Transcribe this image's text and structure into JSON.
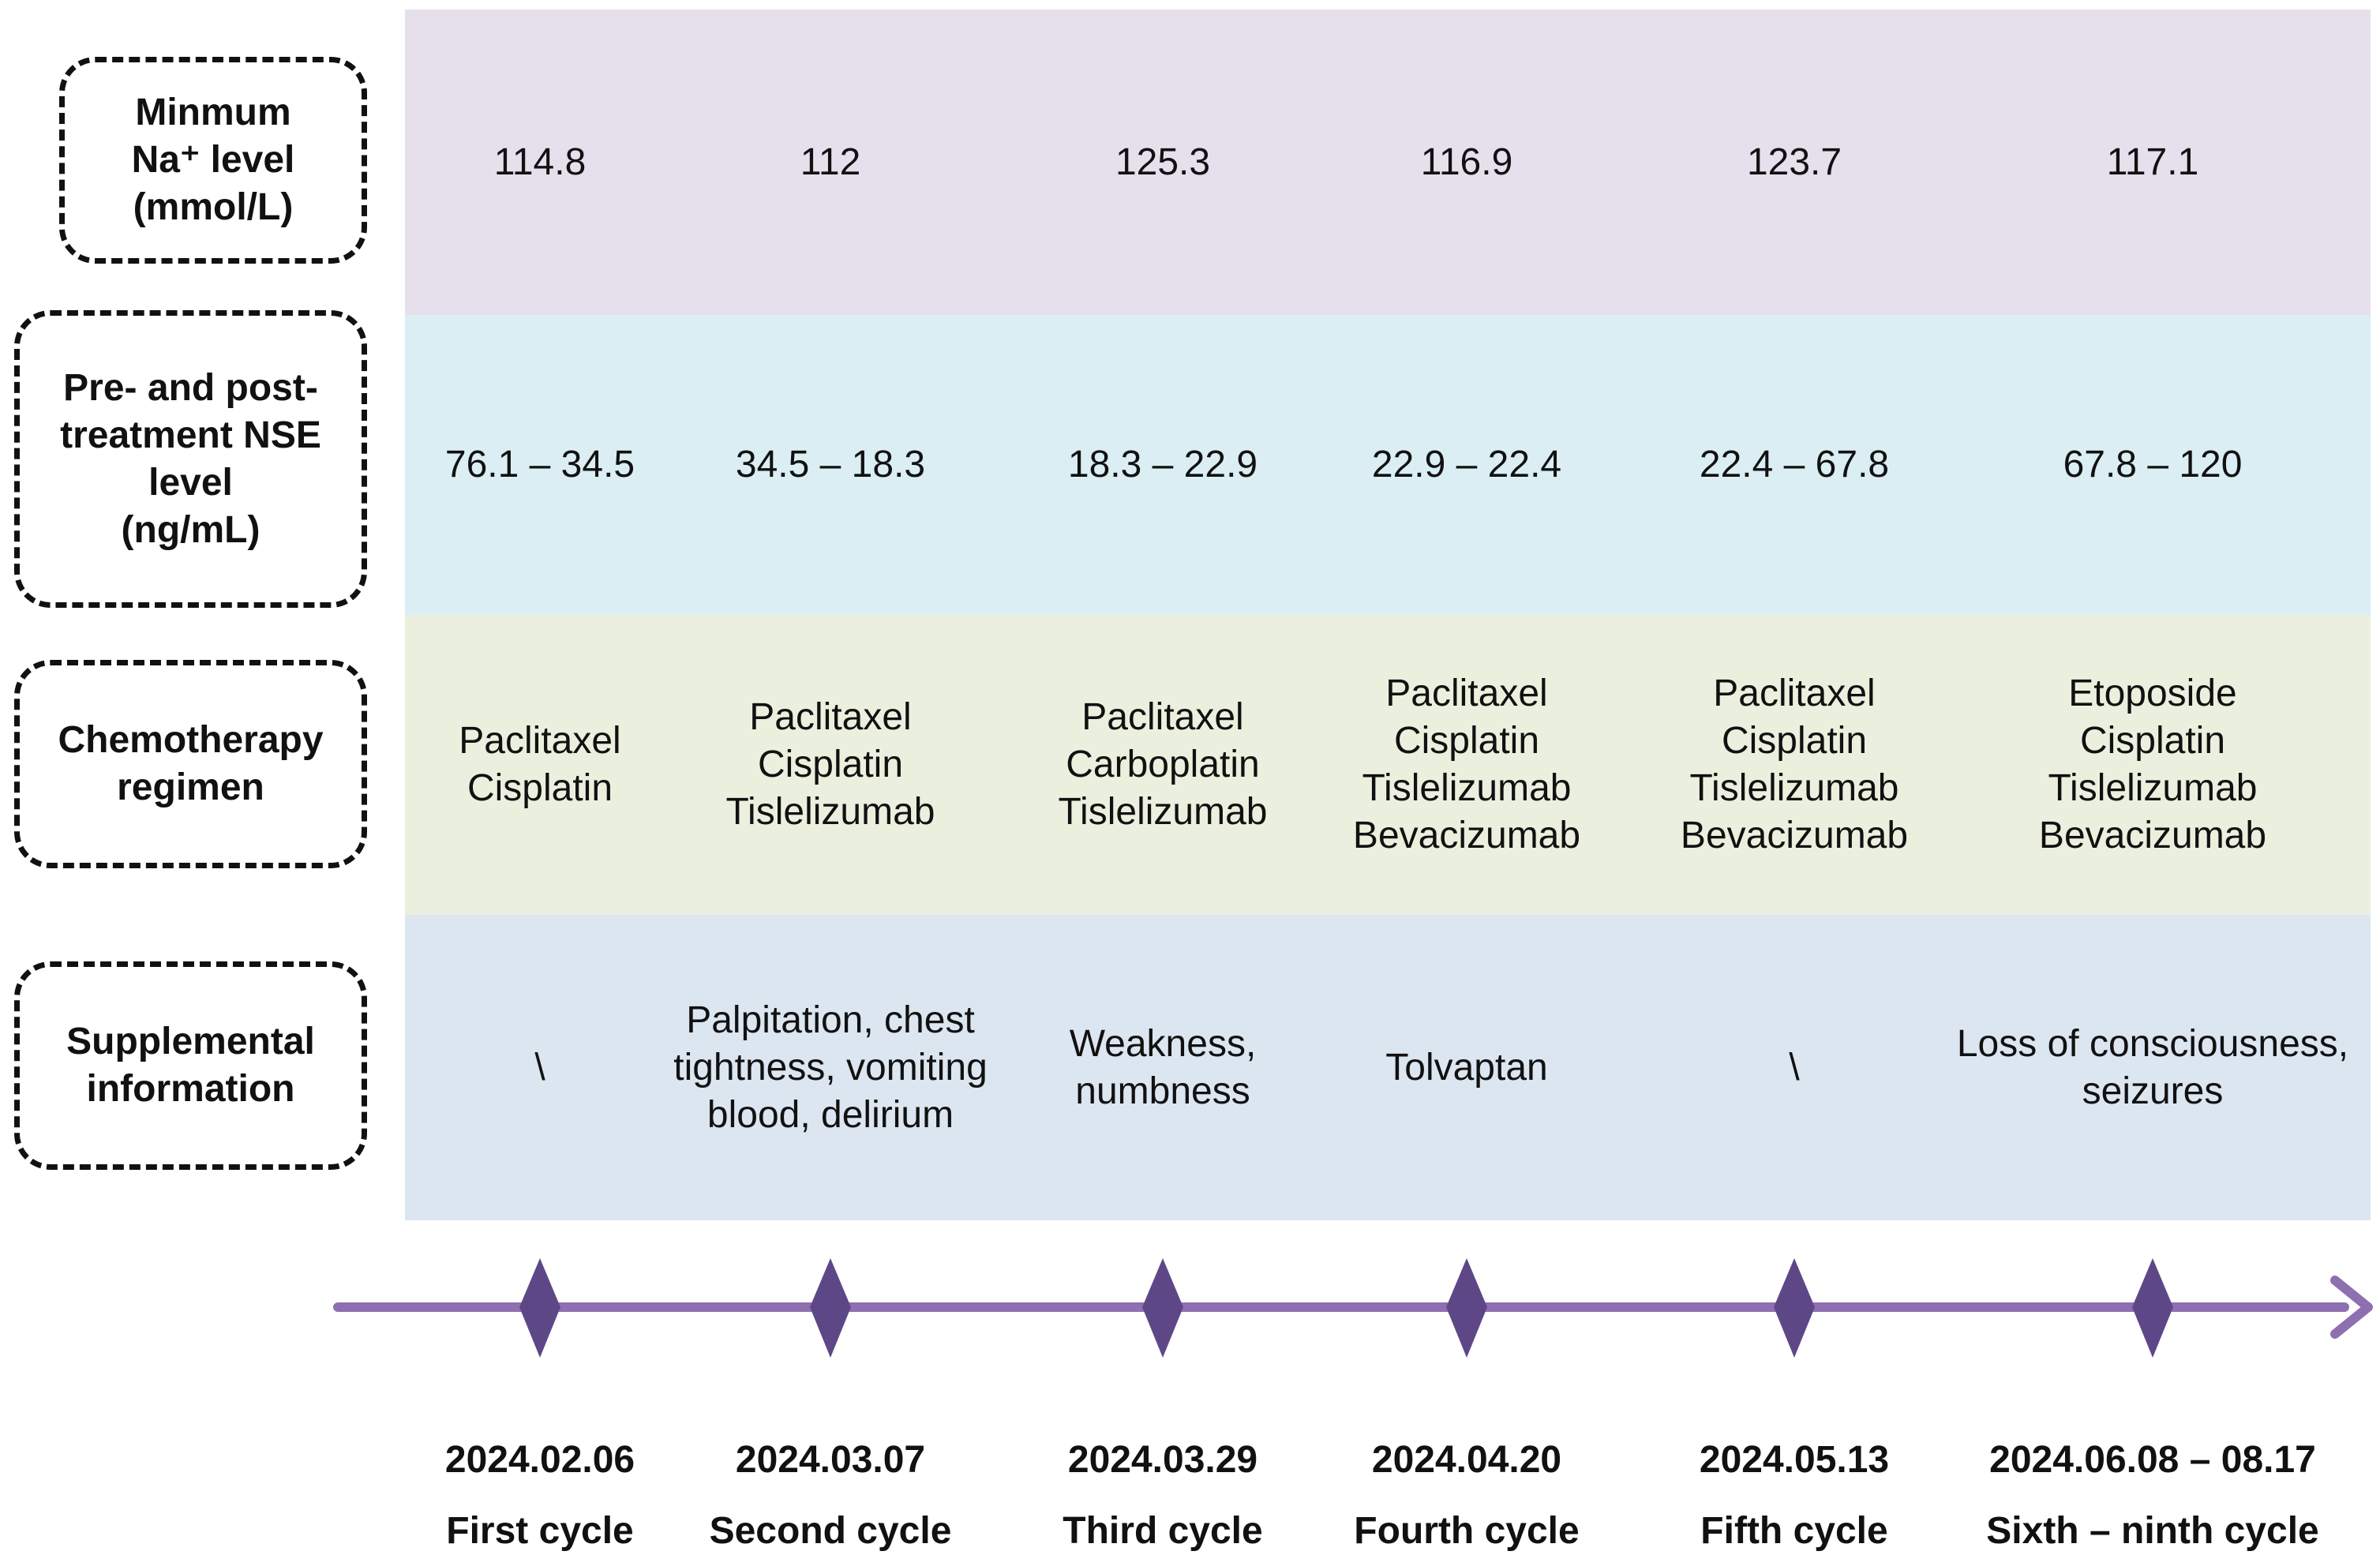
{
  "rows": [
    {
      "label": "Minmum\nNa⁺ level\n(mmol/L)",
      "cells": [
        "114.8",
        "112",
        "125.3",
        "116.9",
        "123.7",
        "117.1"
      ]
    },
    {
      "label": "Pre- and post-\ntreatment NSE\nlevel\n(ng/mL)",
      "cells": [
        "76.1 – 34.5",
        "34.5 – 18.3",
        "18.3 – 22.9",
        "22.9 – 22.4",
        "22.4 – 67.8",
        "67.8 – 120"
      ]
    },
    {
      "label": "Chemotherapy\nregimen",
      "cells": [
        "Paclitaxel\nCisplatin",
        "Paclitaxel\nCisplatin\nTislelizumab",
        "Paclitaxel\nCarboplatin\nTislelizumab",
        "Paclitaxel\nCisplatin\nTislelizumab\nBevacizumab",
        "Paclitaxel\nCisplatin\nTislelizumab\nBevacizumab",
        "Etoposide\nCisplatin\nTislelizumab\nBevacizumab"
      ]
    },
    {
      "label": "Supplemental\ninformation",
      "cells": [
        "\\",
        "Palpitation, chest\ntightness, vomiting\nblood, delirium",
        "Weakness,\nnumbness",
        "Tolvaptan",
        "\\",
        "Loss of consciousness,\nseizures"
      ]
    }
  ],
  "timeline": {
    "dates": [
      "2024.02.06",
      "2024.03.07",
      "2024.03.29",
      "2024.04.20",
      "2024.05.13",
      "2024.06.08 – 08.17"
    ],
    "cycles": [
      "First cycle",
      "Second cycle",
      "Third cycle",
      "Fourth cycle",
      "Fifth cycle",
      "Sixth – ninth cycle"
    ]
  },
  "colors": {
    "row_backgrounds": [
      "#E6DFEC",
      "#DAEEF3",
      "#EBF0DE",
      "#DCE6F1"
    ],
    "arrow": "#8E6FB0",
    "arrow_glow": "#D9CFE8",
    "diamond": "#5E4787"
  }
}
